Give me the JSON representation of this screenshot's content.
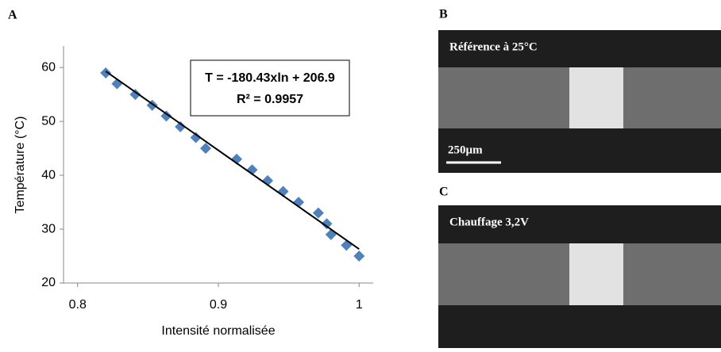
{
  "chart_data": {
    "type": "scatter",
    "panel": "A",
    "xlabel": "Intensité normalisée",
    "ylabel": "Température (°C)",
    "annotation": [
      "T = -180.43xln + 206.9",
      "R² = 0.9957"
    ],
    "x": [
      0.82,
      0.828,
      0.841,
      0.853,
      0.863,
      0.873,
      0.884,
      0.891,
      0.913,
      0.924,
      0.935,
      0.946,
      0.957,
      0.971,
      0.977,
      0.98,
      0.991,
      1.0
    ],
    "values": [
      59,
      57,
      55,
      53,
      51,
      49,
      47,
      45,
      43,
      41,
      39,
      37,
      35,
      33,
      31,
      29,
      27,
      25
    ],
    "color": "#4f81bd",
    "trendline": {
      "x": [
        0.82,
        1.0
      ],
      "y": [
        59.3,
        26.3
      ],
      "color": "#000000"
    },
    "xlim": [
      0.79,
      1.01
    ],
    "xticks": [
      0.8,
      0.9,
      1
    ],
    "ylim": [
      20,
      64
    ],
    "yticks": [
      20,
      30,
      40,
      50,
      60
    ]
  },
  "images": [
    {
      "panel": "B",
      "caption": "Référence à 25°C",
      "scale_bar": "250µm"
    },
    {
      "panel": "C",
      "caption": "Chauffage 3,2V"
    }
  ]
}
